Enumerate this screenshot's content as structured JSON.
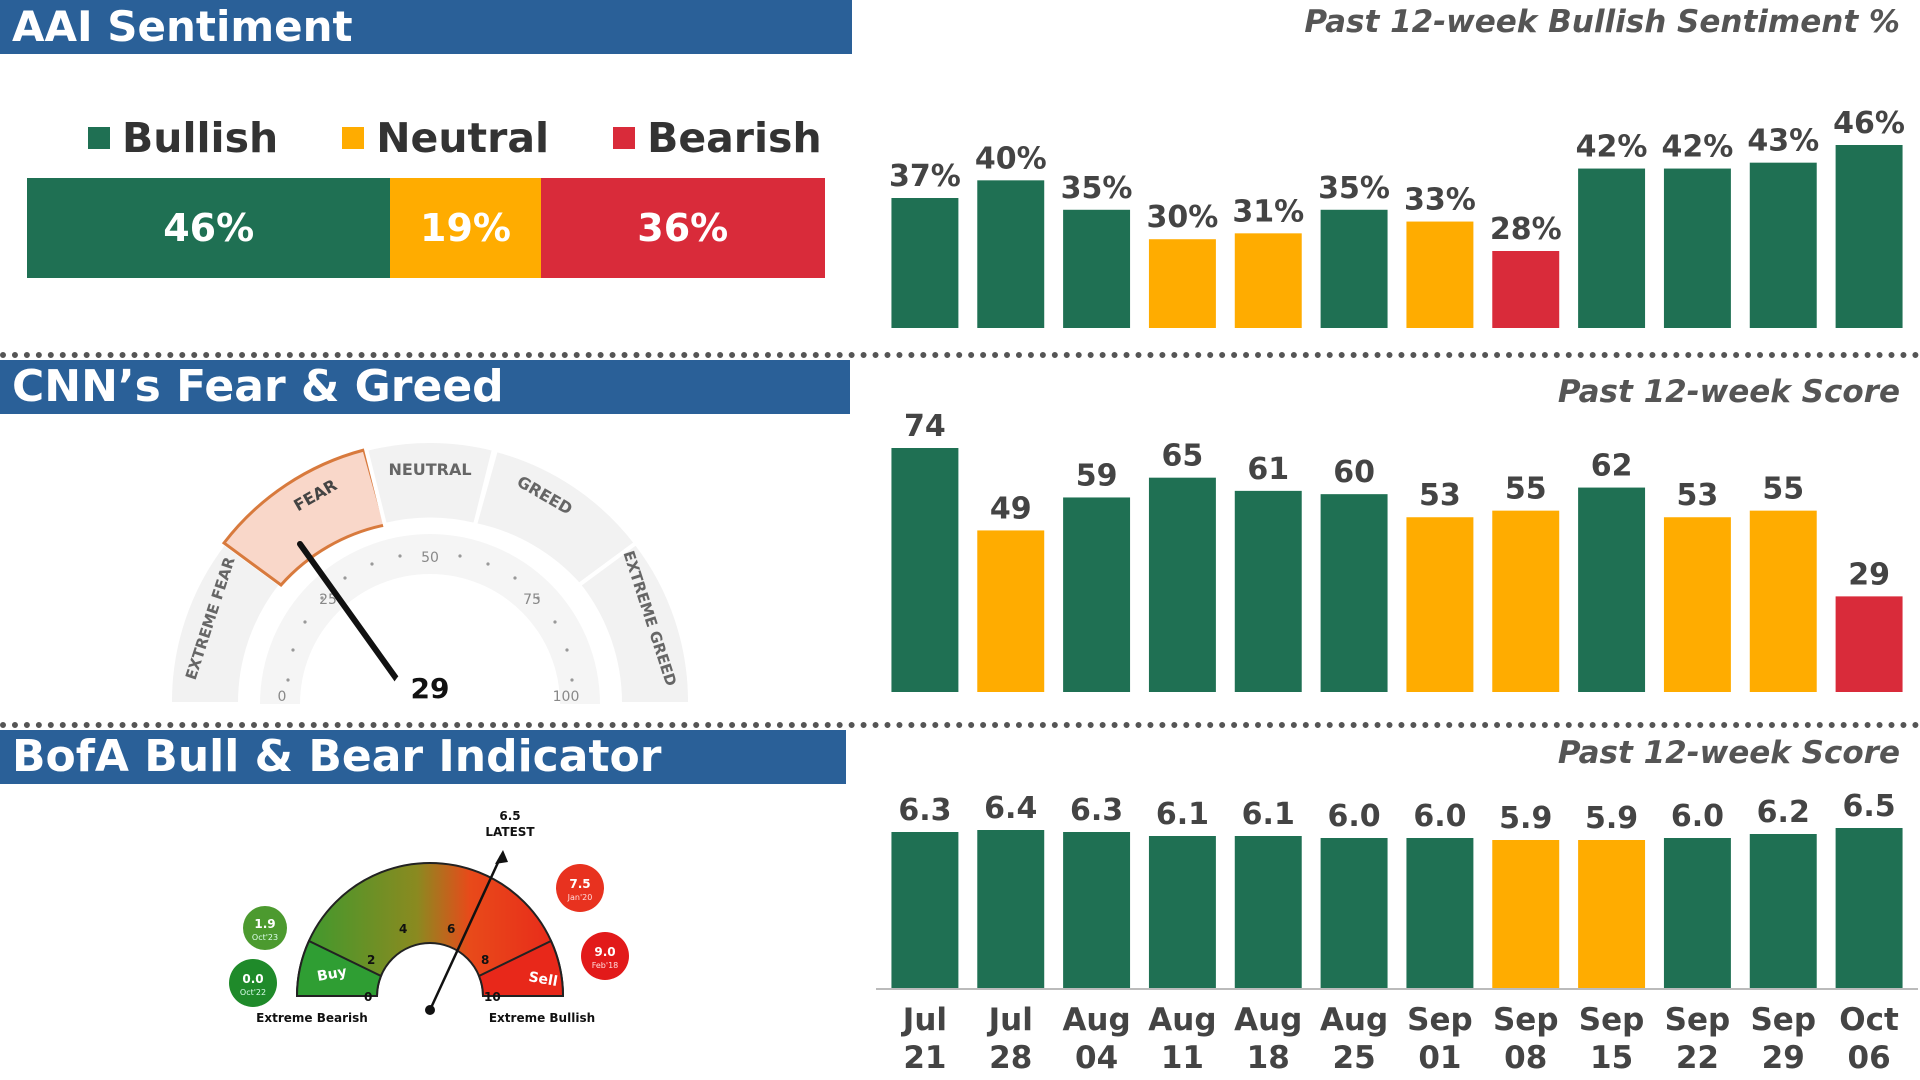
{
  "colors": {
    "green": "#1f7053",
    "yellow": "#ffac00",
    "red": "#d92b3a",
    "banner": "#2a6098"
  },
  "aai": {
    "title": "AAI Sentiment",
    "subtitle": "Past 12-week Bullish Sentiment %",
    "legend": [
      {
        "label": "Bullish",
        "color": "#1f7053"
      },
      {
        "label": "Neutral",
        "color": "#ffac00"
      },
      {
        "label": "Bearish",
        "color": "#d92b3a"
      }
    ],
    "stacked": [
      {
        "label": "46%",
        "value": 46,
        "color": "#1f7053"
      },
      {
        "label": "19%",
        "value": 19,
        "color": "#ffac00"
      },
      {
        "label": "36%",
        "value": 36,
        "color": "#d92b3a"
      }
    ]
  },
  "cnn": {
    "title": "CNN’s Fear & Greed",
    "subtitle": "Past 12-week Score",
    "gauge": {
      "value": 29,
      "value_label": "29",
      "zones": [
        "EXTREME FEAR",
        "FEAR",
        "NEUTRAL",
        "GREED",
        "EXTREME GREED"
      ],
      "active_zone": "FEAR",
      "ticks": [
        "0",
        "25",
        "50",
        "75",
        "100"
      ]
    }
  },
  "bofa": {
    "title": "BofA Bull & Bear Indicator",
    "subtitle": "Past 12-week Score",
    "gauge": {
      "value": 6.5,
      "latest_value": "6.5",
      "latest_label": "LATEST",
      "ticks": [
        "0",
        "2",
        "4",
        "6",
        "8",
        "10"
      ],
      "buy_label": "Buy",
      "sell_label": "Sell",
      "extreme_bearish": "Extreme Bearish",
      "extreme_bullish": "Extreme Bullish",
      "history": [
        {
          "value": "1.9",
          "date": "Oct'23",
          "side": "bearish"
        },
        {
          "value": "0.0",
          "date": "Oct'22",
          "side": "bearish"
        },
        {
          "value": "7.5",
          "date": "Jan'20",
          "side": "bullish"
        },
        {
          "value": "9.0",
          "date": "Feb'18",
          "side": "bullish"
        }
      ]
    }
  },
  "chart_data": [
    {
      "type": "bar",
      "title": "Past 12-week Bullish Sentiment %",
      "categories": [
        "Jul 21",
        "Jul 28",
        "Aug 04",
        "Aug 11",
        "Aug 18",
        "Aug 25",
        "Sep 01",
        "Sep 08",
        "Sep 15",
        "Sep 22",
        "Sep 29",
        "Oct 06"
      ],
      "values": [
        37,
        40,
        35,
        30,
        31,
        35,
        33,
        28,
        42,
        42,
        43,
        46
      ],
      "labels": [
        "37%",
        "40%",
        "35%",
        "30%",
        "31%",
        "35%",
        "33%",
        "28%",
        "42%",
        "42%",
        "43%",
        "46%"
      ],
      "colors": [
        "green",
        "green",
        "green",
        "yellow",
        "yellow",
        "green",
        "yellow",
        "red",
        "green",
        "green",
        "green",
        "green"
      ],
      "ylim": [
        0,
        46
      ]
    },
    {
      "type": "bar",
      "title": "Past 12-week Score",
      "categories": [
        "Jul 21",
        "Jul 28",
        "Aug 04",
        "Aug 11",
        "Aug 18",
        "Aug 25",
        "Sep 01",
        "Sep 08",
        "Sep 15",
        "Sep 22",
        "Sep 29",
        "Oct 06"
      ],
      "values": [
        74,
        49,
        59,
        65,
        61,
        60,
        53,
        55,
        62,
        53,
        55,
        29
      ],
      "labels": [
        "74",
        "49",
        "59",
        "65",
        "61",
        "60",
        "53",
        "55",
        "62",
        "53",
        "55",
        "29"
      ],
      "colors": [
        "green",
        "yellow",
        "green",
        "green",
        "green",
        "green",
        "yellow",
        "yellow",
        "green",
        "yellow",
        "yellow",
        "red"
      ],
      "ylim": [
        0,
        74
      ]
    },
    {
      "type": "bar",
      "title": "Past 12-week Score",
      "categories": [
        "Jul 21",
        "Jul 28",
        "Aug 04",
        "Aug 11",
        "Aug 18",
        "Aug 25",
        "Sep 01",
        "Sep 08",
        "Sep 15",
        "Sep 22",
        "Sep 29",
        "Oct 06"
      ],
      "x_ticks_top": [
        "Jul",
        "Jul",
        "Aug",
        "Aug",
        "Aug",
        "Aug",
        "Sep",
        "Sep",
        "Sep",
        "Sep",
        "Sep",
        "Oct"
      ],
      "x_ticks_bottom": [
        "21",
        "28",
        "04",
        "11",
        "18",
        "25",
        "01",
        "08",
        "15",
        "22",
        "29",
        "06"
      ],
      "values": [
        6.3,
        6.4,
        6.3,
        6.1,
        6.1,
        6.0,
        6.0,
        5.9,
        5.9,
        6.0,
        6.2,
        6.5
      ],
      "labels": [
        "6.3",
        "6.4",
        "6.3",
        "6.1",
        "6.1",
        "6.0",
        "6.0",
        "5.9",
        "5.9",
        "6.0",
        "6.2",
        "6.5"
      ],
      "colors": [
        "green",
        "green",
        "green",
        "green",
        "green",
        "green",
        "green",
        "yellow",
        "yellow",
        "green",
        "green",
        "green"
      ],
      "ylim": [
        0,
        6.5
      ]
    }
  ]
}
